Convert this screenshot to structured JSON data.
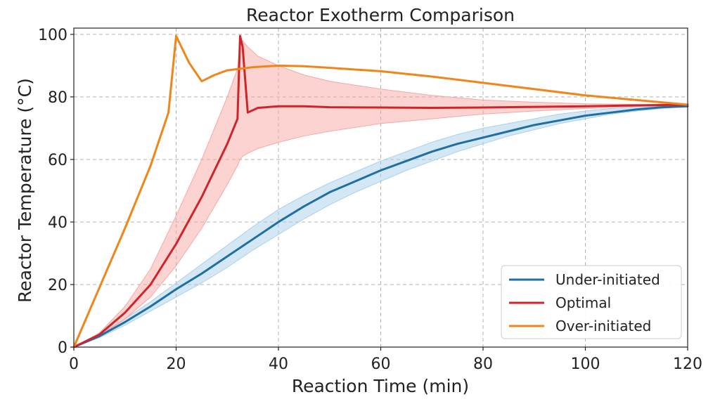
{
  "chart_data": {
    "type": "line",
    "title": "Reactor Exotherm Comparison",
    "xlabel": "Reaction Time (min)",
    "ylabel": "Reactor Temperature (°C)",
    "xlim": [
      0,
      120
    ],
    "ylim": [
      0,
      102
    ],
    "xticks": [
      0,
      20,
      40,
      60,
      80,
      100,
      120
    ],
    "yticks": [
      0,
      20,
      40,
      60,
      80,
      100
    ],
    "grid": true,
    "legend_position": "bottom-right",
    "series": [
      {
        "name": "Under-initiated",
        "color": "#1f6fa3",
        "band_color": "#a9d0ea",
        "x": [
          0,
          5,
          10,
          15,
          20,
          25,
          30,
          35,
          40,
          45,
          50,
          55,
          60,
          65,
          70,
          75,
          80,
          85,
          90,
          95,
          100,
          105,
          110,
          115,
          120
        ],
        "y": [
          0,
          3.5,
          8,
          13,
          18.5,
          23.5,
          29,
          34.5,
          40,
          45,
          49.5,
          53,
          56.5,
          59.5,
          62.5,
          65,
          67,
          69,
          71,
          72.5,
          74,
          75,
          76,
          76.7,
          77
        ],
        "lower": [
          0,
          3,
          7,
          11.5,
          16,
          20.5,
          25.5,
          31,
          36,
          41,
          45.5,
          49.5,
          53,
          56.5,
          59.5,
          62.5,
          65,
          67.5,
          69.5,
          71.5,
          73,
          74.5,
          75.5,
          76.3,
          77
        ],
        "upper": [
          0,
          4,
          9,
          14.5,
          20.5,
          26.5,
          32.5,
          38.5,
          44,
          48.5,
          52.5,
          56,
          59.5,
          62.5,
          65.5,
          68,
          70,
          71.5,
          73,
          74.5,
          75.5,
          76.3,
          76.8,
          77,
          77
        ]
      },
      {
        "name": "Optimal",
        "color": "#d0242b",
        "band_color": "#f7a7a4",
        "x": [
          0,
          5,
          10,
          15,
          20,
          25,
          30,
          32,
          32.5,
          33,
          34,
          36,
          40,
          45,
          50,
          60,
          70,
          80,
          90,
          100,
          110,
          120
        ],
        "y": [
          0,
          4,
          11,
          20,
          33,
          48,
          65,
          73,
          99.5,
          96,
          75,
          76.5,
          77,
          77,
          76.7,
          76.6,
          76.5,
          76.6,
          76.8,
          77,
          77.3,
          77.5
        ],
        "lower": [
          0,
          3.5,
          9,
          16,
          26,
          38,
          52,
          58,
          60,
          61,
          62,
          63.5,
          65.5,
          67.5,
          69,
          71.5,
          73,
          74.5,
          75.5,
          76.3,
          77,
          77.5
        ],
        "upper": [
          0,
          4.5,
          13,
          25,
          42,
          60,
          80,
          89,
          97,
          98,
          96,
          93,
          90,
          87,
          85,
          82.5,
          80.5,
          79,
          78.3,
          77.8,
          77.6,
          77.5
        ]
      },
      {
        "name": "Over-initiated",
        "color": "#f0861a",
        "x": [
          0,
          5,
          10,
          15,
          18.5,
          20,
          22.5,
          25,
          27.5,
          30,
          35,
          40,
          45,
          50,
          60,
          70,
          80,
          90,
          100,
          110,
          120
        ],
        "y": [
          0,
          19,
          38,
          58,
          75,
          99.5,
          91,
          85,
          87,
          88.5,
          89.5,
          90,
          89.8,
          89.3,
          88.2,
          86.5,
          84.5,
          82.5,
          80.5,
          79,
          77.5
        ]
      }
    ]
  }
}
